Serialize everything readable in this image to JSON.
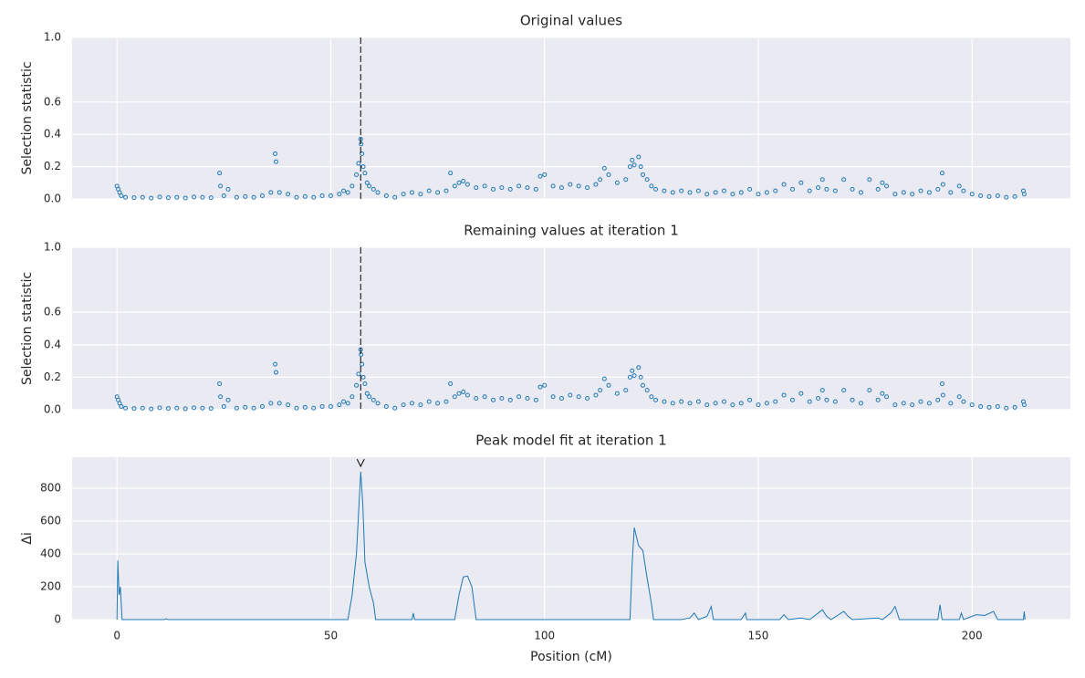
{
  "chart_data": [
    {
      "type": "scatter",
      "title": "Original values",
      "ylabel": "Selection statistic",
      "color": "#1f77b4",
      "x": [
        0,
        0.3,
        0.6,
        1,
        2,
        4,
        6,
        8,
        10,
        12,
        14,
        16,
        18,
        20,
        22,
        24,
        24.2,
        25,
        26,
        28,
        30,
        32,
        34,
        36,
        37,
        37.2,
        38,
        40,
        42,
        44,
        46,
        48,
        50,
        52,
        53,
        54,
        55,
        56,
        56.5,
        57,
        57.1,
        57.3,
        57.6,
        58,
        58.5,
        59,
        60,
        61,
        63,
        65,
        67,
        69,
        71,
        73,
        75,
        77,
        78,
        79,
        80,
        81,
        82,
        84,
        86,
        88,
        90,
        92,
        94,
        96,
        98,
        99,
        100,
        102,
        104,
        106,
        108,
        110,
        112,
        113,
        114,
        115,
        117,
        119,
        120,
        120.5,
        121,
        122,
        122.5,
        123,
        124,
        125,
        126,
        128,
        130,
        132,
        134,
        136,
        138,
        140,
        142,
        144,
        146,
        148,
        150,
        152,
        154,
        156,
        158,
        160,
        162,
        164,
        165,
        166,
        168,
        170,
        172,
        174,
        176,
        178,
        179,
        180,
        182,
        184,
        186,
        188,
        190,
        192,
        193,
        193.2,
        195,
        197,
        198,
        200,
        202,
        204,
        206,
        208,
        210,
        212,
        212.2
      ],
      "values": [
        0.08,
        0.06,
        0.04,
        0.02,
        0.01,
        0.008,
        0.01,
        0.005,
        0.012,
        0.008,
        0.01,
        0.006,
        0.012,
        0.01,
        0.008,
        0.16,
        0.08,
        0.02,
        0.06,
        0.01,
        0.015,
        0.01,
        0.02,
        0.04,
        0.28,
        0.23,
        0.04,
        0.03,
        0.01,
        0.015,
        0.01,
        0.02,
        0.02,
        0.03,
        0.05,
        0.04,
        0.08,
        0.15,
        0.22,
        0.37,
        0.34,
        0.28,
        0.2,
        0.16,
        0.1,
        0.08,
        0.06,
        0.04,
        0.02,
        0.01,
        0.03,
        0.04,
        0.03,
        0.05,
        0.04,
        0.05,
        0.16,
        0.08,
        0.1,
        0.11,
        0.09,
        0.07,
        0.08,
        0.06,
        0.07,
        0.06,
        0.08,
        0.07,
        0.06,
        0.14,
        0.15,
        0.08,
        0.07,
        0.09,
        0.08,
        0.07,
        0.09,
        0.12,
        0.19,
        0.15,
        0.1,
        0.12,
        0.2,
        0.24,
        0.21,
        0.26,
        0.2,
        0.15,
        0.12,
        0.08,
        0.06,
        0.05,
        0.04,
        0.05,
        0.04,
        0.05,
        0.03,
        0.04,
        0.05,
        0.03,
        0.04,
        0.06,
        0.03,
        0.04,
        0.05,
        0.09,
        0.06,
        0.1,
        0.05,
        0.07,
        0.12,
        0.06,
        0.05,
        0.12,
        0.06,
        0.04,
        0.12,
        0.06,
        0.1,
        0.08,
        0.03,
        0.04,
        0.03,
        0.05,
        0.04,
        0.06,
        0.16,
        0.09,
        0.04,
        0.08,
        0.05,
        0.03,
        0.02,
        0.015,
        0.02,
        0.01,
        0.015,
        0.05,
        0.03
      ],
      "xlim": [
        -10.5,
        223
      ],
      "xticks": [
        0,
        50,
        100,
        150,
        200
      ],
      "ylim": [
        0,
        1
      ],
      "yticks": [
        {
          "value": 0,
          "label": "0.0"
        },
        0.2,
        0.4,
        0.6,
        {
          "value": 1,
          "label": "1.0"
        }
      ],
      "vline": 57,
      "grid": true
    },
    {
      "type": "scatter",
      "title": "Remaining values at iteration 1",
      "ylabel": "Selection statistic",
      "color": "#1f77b4",
      "x": [
        0,
        0.3,
        0.6,
        1,
        2,
        4,
        6,
        8,
        10,
        12,
        14,
        16,
        18,
        20,
        22,
        24,
        24.2,
        25,
        26,
        28,
        30,
        32,
        34,
        36,
        37,
        37.2,
        38,
        40,
        42,
        44,
        46,
        48,
        50,
        52,
        53,
        54,
        55,
        56,
        56.5,
        57,
        57.1,
        57.3,
        57.6,
        58,
        58.5,
        59,
        60,
        61,
        63,
        65,
        67,
        69,
        71,
        73,
        75,
        77,
        78,
        79,
        80,
        81,
        82,
        84,
        86,
        88,
        90,
        92,
        94,
        96,
        98,
        99,
        100,
        102,
        104,
        106,
        108,
        110,
        112,
        113,
        114,
        115,
        117,
        119,
        120,
        120.5,
        121,
        122,
        122.5,
        123,
        124,
        125,
        126,
        128,
        130,
        132,
        134,
        136,
        138,
        140,
        142,
        144,
        146,
        148,
        150,
        152,
        154,
        156,
        158,
        160,
        162,
        164,
        165,
        166,
        168,
        170,
        172,
        174,
        176,
        178,
        179,
        180,
        182,
        184,
        186,
        188,
        190,
        192,
        193,
        193.2,
        195,
        197,
        198,
        200,
        202,
        204,
        206,
        208,
        210,
        212,
        212.2
      ],
      "values": [
        0.08,
        0.06,
        0.04,
        0.02,
        0.01,
        0.008,
        0.01,
        0.005,
        0.012,
        0.008,
        0.01,
        0.006,
        0.012,
        0.01,
        0.008,
        0.16,
        0.08,
        0.02,
        0.06,
        0.01,
        0.015,
        0.01,
        0.02,
        0.04,
        0.28,
        0.23,
        0.04,
        0.03,
        0.01,
        0.015,
        0.01,
        0.02,
        0.02,
        0.03,
        0.05,
        0.04,
        0.08,
        0.15,
        0.22,
        0.37,
        0.34,
        0.28,
        0.2,
        0.16,
        0.1,
        0.08,
        0.06,
        0.04,
        0.02,
        0.01,
        0.03,
        0.04,
        0.03,
        0.05,
        0.04,
        0.05,
        0.16,
        0.08,
        0.1,
        0.11,
        0.09,
        0.07,
        0.08,
        0.06,
        0.07,
        0.06,
        0.08,
        0.07,
        0.06,
        0.14,
        0.15,
        0.08,
        0.07,
        0.09,
        0.08,
        0.07,
        0.09,
        0.12,
        0.19,
        0.15,
        0.1,
        0.12,
        0.2,
        0.24,
        0.21,
        0.26,
        0.2,
        0.15,
        0.12,
        0.08,
        0.06,
        0.05,
        0.04,
        0.05,
        0.04,
        0.05,
        0.03,
        0.04,
        0.05,
        0.03,
        0.04,
        0.06,
        0.03,
        0.04,
        0.05,
        0.09,
        0.06,
        0.1,
        0.05,
        0.07,
        0.12,
        0.06,
        0.05,
        0.12,
        0.06,
        0.04,
        0.12,
        0.06,
        0.1,
        0.08,
        0.03,
        0.04,
        0.03,
        0.05,
        0.04,
        0.06,
        0.16,
        0.09,
        0.04,
        0.08,
        0.05,
        0.03,
        0.02,
        0.015,
        0.02,
        0.01,
        0.015,
        0.05,
        0.03
      ],
      "xlim": [
        -10.5,
        223
      ],
      "xticks": [
        0,
        50,
        100,
        150,
        200
      ],
      "ylim": [
        0,
        1
      ],
      "yticks": [
        {
          "value": 0,
          "label": "0.0"
        },
        0.2,
        0.4,
        0.6,
        {
          "value": 1,
          "label": "1.0"
        }
      ],
      "vline": 57,
      "grid": true
    },
    {
      "type": "line",
      "title": "Peak model fit at iteration 1",
      "ylabel": "Δi",
      "xlabel": "Position (cM)",
      "color": "#1f77b4",
      "x": [
        0,
        0.2,
        0.5,
        0.8,
        1.2,
        11,
        11.5,
        12,
        54,
        55,
        56,
        57,
        57.5,
        58,
        59,
        60,
        60.5,
        69,
        69.3,
        69.6,
        79,
        80,
        81,
        82,
        83,
        84,
        120,
        120.5,
        121,
        122,
        123,
        124,
        125,
        125.5,
        132,
        134,
        135,
        136,
        138,
        139,
        139.5,
        146,
        147,
        147.3,
        155,
        156,
        157,
        160,
        162,
        164,
        165,
        166,
        167,
        170,
        171,
        172,
        178,
        179,
        181,
        182,
        183,
        192,
        192.5,
        193,
        197,
        197.5,
        198,
        201,
        203,
        205,
        206,
        212,
        212.2,
        212.4
      ],
      "values": [
        0,
        360,
        150,
        200,
        0,
        0,
        5,
        0,
        0,
        150,
        400,
        900,
        700,
        350,
        200,
        100,
        0,
        0,
        40,
        0,
        0,
        150,
        260,
        265,
        200,
        0,
        0,
        350,
        560,
        450,
        420,
        250,
        100,
        0,
        0,
        10,
        40,
        0,
        20,
        80,
        0,
        0,
        40,
        0,
        0,
        30,
        0,
        10,
        0,
        40,
        60,
        20,
        0,
        50,
        20,
        0,
        10,
        0,
        40,
        80,
        0,
        0,
        90,
        0,
        0,
        40,
        0,
        30,
        25,
        50,
        0,
        0,
        50,
        0
      ],
      "xlim": [
        -10.5,
        223
      ],
      "xticks": [
        0,
        50,
        100,
        150,
        200
      ],
      "ylim": [
        0,
        989
      ],
      "yticks": [
        0,
        200,
        400,
        600,
        800
      ],
      "peak_marker": {
        "x": 57,
        "y": 955
      },
      "grid": true
    }
  ]
}
